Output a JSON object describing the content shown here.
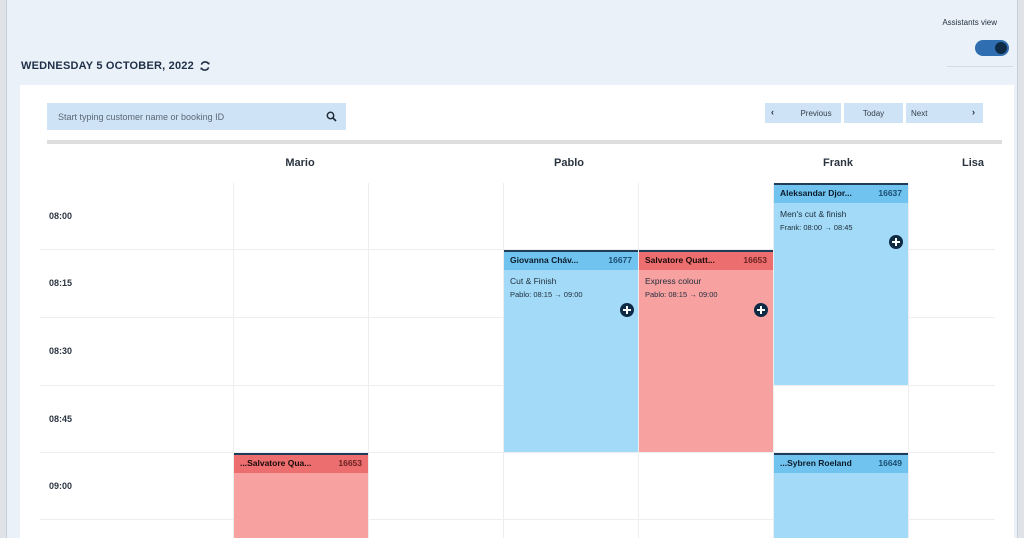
{
  "header": {
    "date_title": "WEDNESDAY 5 OCTOBER, 2022",
    "assistants_view_label": "Assistants view",
    "assistants_view_on": true
  },
  "search": {
    "placeholder": "Start typing customer name or booking ID"
  },
  "nav": {
    "previous": "Previous",
    "today": "Today",
    "next": "Next"
  },
  "columns": [
    "Mario",
    "Pablo",
    "Frank",
    "Lisa"
  ],
  "times": [
    "08:00",
    "08:15",
    "08:30",
    "08:45",
    "09:00"
  ],
  "appointments": [
    {
      "name": "Giovanna Cháv...",
      "id": "16677",
      "service": "Cut & Finish",
      "time": "Pablo: 08:15 → 09:00",
      "color": "blue"
    },
    {
      "name": "Salvatore Quatt...",
      "id": "16653",
      "service": "Express colour",
      "time": "Pablo: 08:15 → 09:00",
      "color": "red"
    },
    {
      "name": "Aleksandar Djor...",
      "id": "16637",
      "service": "Men's cut & finish",
      "time": "Frank: 08:00 → 08:45",
      "color": "blue"
    },
    {
      "name": "...Salvatore Qua...",
      "id": "16653",
      "color": "red"
    },
    {
      "name": "...Sybren Roeland",
      "id": "16649",
      "color": "blue"
    }
  ],
  "colors": {
    "accent": "#2f6fb1",
    "appointment_blue": "#a2daf7",
    "appointment_red": "#f7a1a1"
  }
}
